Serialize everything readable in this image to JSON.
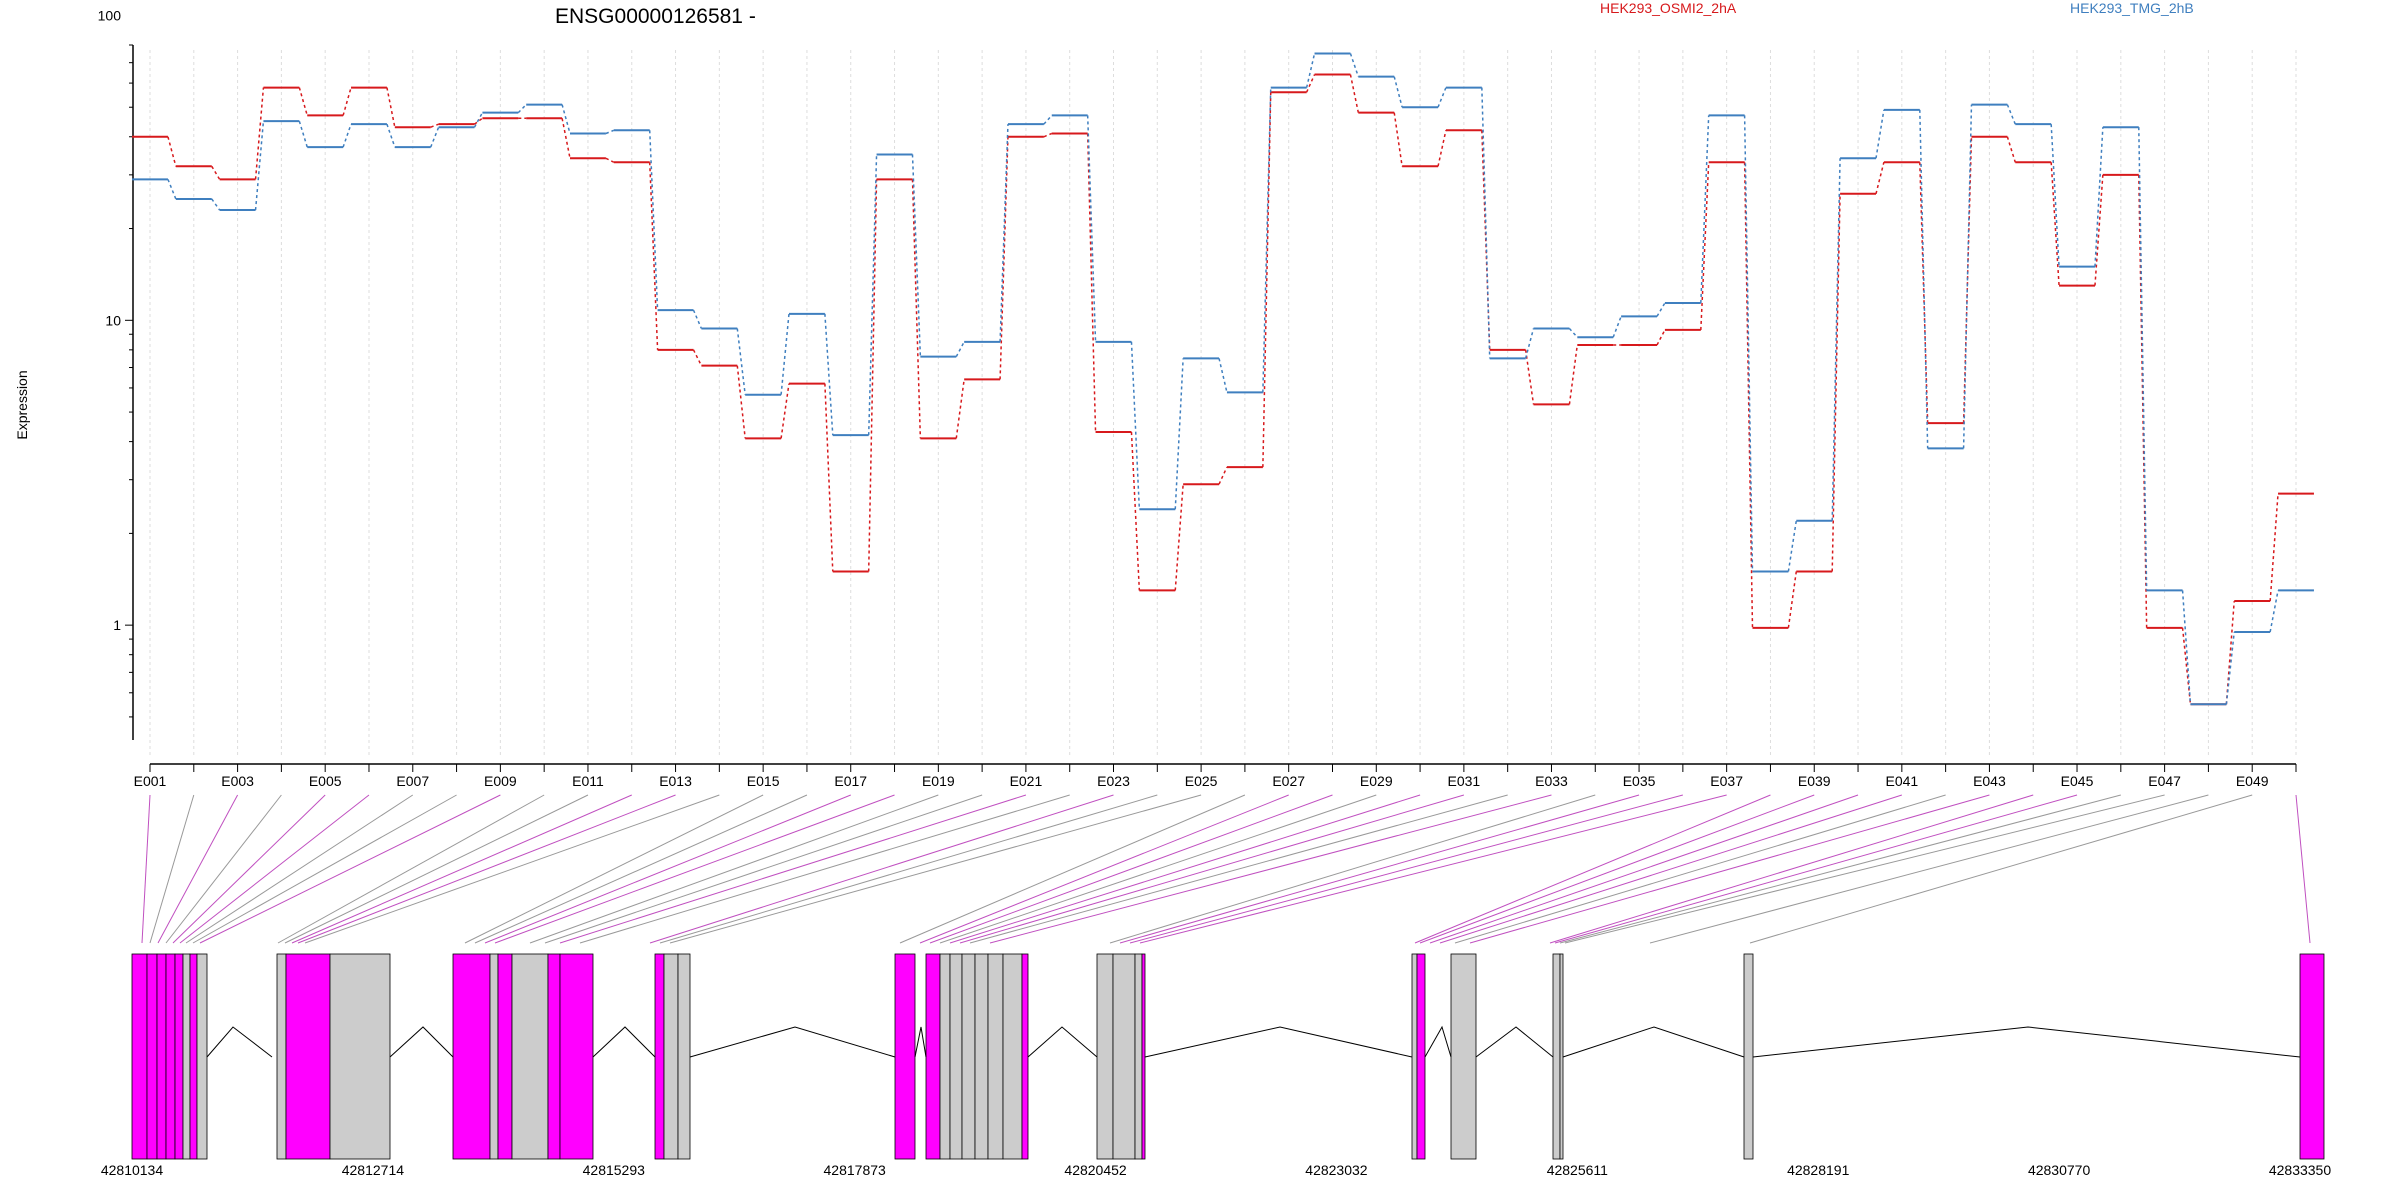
{
  "chart_data": {
    "type": "line",
    "title": "ENSG00000126581 -",
    "ylabel": "Expression",
    "xlabel": "",
    "yscale": "log",
    "ylim": [
      0.42,
      80
    ],
    "yticks": [
      1,
      10,
      100
    ],
    "ytick_labels": [
      "1",
      "10",
      "100"
    ],
    "grid": "vertical dotted lines at each exon",
    "legend_position": "top",
    "x_tick_labels": [
      "E001",
      "E003",
      "E005",
      "E007",
      "E009",
      "E011",
      "E013",
      "E015",
      "E017",
      "E019",
      "E021",
      "E023",
      "E025",
      "E027",
      "E029",
      "E031",
      "E033",
      "E035",
      "E037",
      "E039",
      "E041",
      "E043",
      "E045",
      "E047",
      "E049"
    ],
    "x": [
      "E001",
      "E002",
      "E003",
      "E004",
      "E005",
      "E006",
      "E007",
      "E008",
      "E009",
      "E010",
      "E011",
      "E012",
      "E013",
      "E014",
      "E015",
      "E016",
      "E017",
      "E018",
      "E019",
      "E020",
      "E021",
      "E022",
      "E023",
      "E024",
      "E025",
      "E026",
      "E027",
      "E028",
      "E029",
      "E030",
      "E031",
      "E032",
      "E033",
      "E034",
      "E035",
      "E036",
      "E037",
      "E038",
      "E039",
      "E040",
      "E041",
      "E042",
      "E043",
      "E044",
      "E045",
      "E046",
      "E047",
      "E048",
      "E049",
      "E050"
    ],
    "series": [
      {
        "name": "HEK293_OSMI2_2hA",
        "color": "#d7191c",
        "values": [
          40,
          32,
          29,
          58,
          47,
          58,
          43,
          44,
          46,
          46,
          34,
          33,
          8.0,
          7.1,
          4.1,
          6.2,
          1.5,
          29,
          4.1,
          6.4,
          40,
          41,
          4.3,
          1.3,
          2.9,
          3.3,
          56,
          64,
          48,
          32,
          42,
          8.0,
          5.3,
          8.3,
          8.3,
          9.3,
          33,
          0.98,
          1.5,
          26,
          33,
          4.6,
          40,
          33,
          13,
          30,
          0.98,
          0.55,
          1.2,
          2.7
        ]
      },
      {
        "name": "HEK293_TMG_2hB",
        "color": "#3f7fbf",
        "values": [
          29,
          25,
          23,
          45,
          37,
          44,
          37,
          43,
          48,
          51,
          41,
          42,
          10.8,
          9.4,
          5.7,
          10.5,
          4.2,
          35,
          7.6,
          8.5,
          44,
          47,
          8.5,
          2.4,
          7.5,
          5.8,
          58,
          75,
          63,
          50,
          58,
          7.5,
          9.4,
          8.8,
          10.3,
          11.4,
          47,
          1.5,
          2.2,
          34,
          49,
          3.8,
          51,
          44,
          15,
          43,
          1.3,
          0.55,
          0.95,
          1.3
        ]
      }
    ],
    "gene_model": {
      "coordinate_labels": [
        "42810134",
        "42812714",
        "42815293",
        "42817873",
        "42820452",
        "42823032",
        "42825611",
        "42828191",
        "42830770",
        "42833350"
      ],
      "exon_color_highlight": "#ff00ff",
      "exon_color_normal": "#cccccc"
    }
  }
}
